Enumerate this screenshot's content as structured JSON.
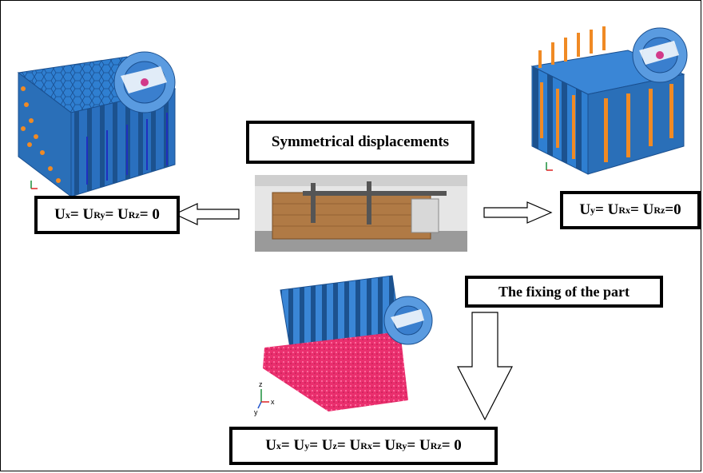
{
  "title": "Symmetrical displacements",
  "fixing_label": "The fixing of the part",
  "equations": {
    "left": [
      {
        "t": "U"
      },
      {
        "s": "x"
      },
      {
        "t": " = U"
      },
      {
        "s": "Ry"
      },
      {
        "t": " = U"
      },
      {
        "s": "Rz"
      },
      {
        "t": " = 0"
      }
    ],
    "right": [
      {
        "t": "U"
      },
      {
        "s": "y"
      },
      {
        "t": " = U"
      },
      {
        "s": "Rx"
      },
      {
        "t": " = U"
      },
      {
        "s": "Rz"
      },
      {
        "t": " =0"
      }
    ],
    "bottom": [
      {
        "t": "U"
      },
      {
        "s": "x"
      },
      {
        "t": " = U"
      },
      {
        "s": "y"
      },
      {
        "t": " = U"
      },
      {
        "s": "z"
      },
      {
        "t": " = U"
      },
      {
        "s": "Rx"
      },
      {
        "t": " = U"
      },
      {
        "s": "Ry"
      },
      {
        "t": " = U"
      },
      {
        "s": "Rz"
      },
      {
        "t": " = 0"
      }
    ]
  },
  "axis_labels": {
    "z": "z",
    "x": "x",
    "y": "y"
  },
  "colors": {
    "mesh_blue": "#2f7fd1",
    "mesh_dark": "#1a4f8f",
    "constraint_orange": "#f08a24",
    "constraint_blue": "#1f2fbf",
    "fixed_pink": "#ea2f6e",
    "photo_wood": "#b07a45"
  }
}
